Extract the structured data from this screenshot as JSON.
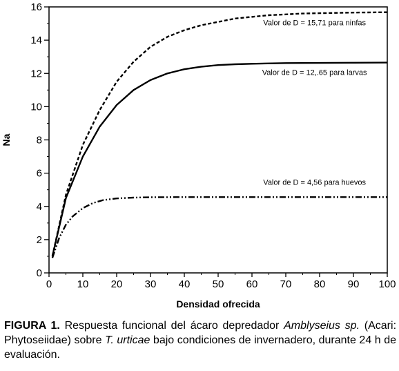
{
  "chart_data": {
    "type": "line",
    "xlabel": "Densidad ofrecida",
    "ylabel": "Na",
    "xlim": [
      0,
      100
    ],
    "ylim": [
      0,
      16
    ],
    "xticks": [
      0,
      10,
      20,
      30,
      40,
      50,
      60,
      70,
      80,
      90,
      100
    ],
    "yticks": [
      0,
      2,
      4,
      6,
      8,
      10,
      12,
      14,
      16
    ],
    "grid": false,
    "series": [
      {
        "style": "dashed",
        "x": [
          1,
          5,
          10,
          15,
          20,
          25,
          30,
          35,
          40,
          45,
          50,
          55,
          60,
          65,
          70,
          75,
          80,
          90,
          100
        ],
        "y": [
          1.0,
          4.7,
          7.7,
          9.8,
          11.5,
          12.7,
          13.6,
          14.2,
          14.6,
          14.9,
          15.1,
          15.3,
          15.4,
          15.5,
          15.55,
          15.6,
          15.62,
          15.66,
          15.68
        ]
      },
      {
        "style": "solid",
        "x": [
          1,
          5,
          10,
          15,
          20,
          25,
          30,
          35,
          40,
          45,
          50,
          55,
          60,
          70,
          80,
          90,
          100
        ],
        "y": [
          1.0,
          4.5,
          7.0,
          8.8,
          10.1,
          11.0,
          11.6,
          12.0,
          12.25,
          12.4,
          12.5,
          12.55,
          12.58,
          12.62,
          12.63,
          12.64,
          12.65
        ]
      },
      {
        "style": "dash-dot",
        "x": [
          1,
          3,
          5,
          7,
          10,
          13,
          16,
          20,
          25,
          30,
          40,
          50,
          60,
          70,
          80,
          90,
          100
        ],
        "y": [
          0.9,
          2.1,
          2.9,
          3.4,
          3.9,
          4.2,
          4.38,
          4.48,
          4.53,
          4.55,
          4.56,
          4.56,
          4.56,
          4.56,
          4.56,
          4.56,
          4.56
        ]
      }
    ],
    "annotations": [
      {
        "text": "Valor de D = 15,71 para ninfas",
        "x": 78.5,
        "y": 14.9
      },
      {
        "text": "Valor de D = 12,.65 para larvas",
        "x": 78.5,
        "y": 11.9
      },
      {
        "text": "Valor de D = 4,56 para huevos",
        "x": 78.5,
        "y": 5.3
      }
    ]
  },
  "caption": {
    "label": "FIGURA 1.",
    "text_1": " Respuesta funcional del ácaro depredador ",
    "species_1": "Amblyseius sp.",
    "text_2": " (Acari: Phytoseiidae) sobre ",
    "species_2": "T. urticae",
    "text_3": " bajo condiciones de invernadero, durante 24 h de evaluación."
  }
}
